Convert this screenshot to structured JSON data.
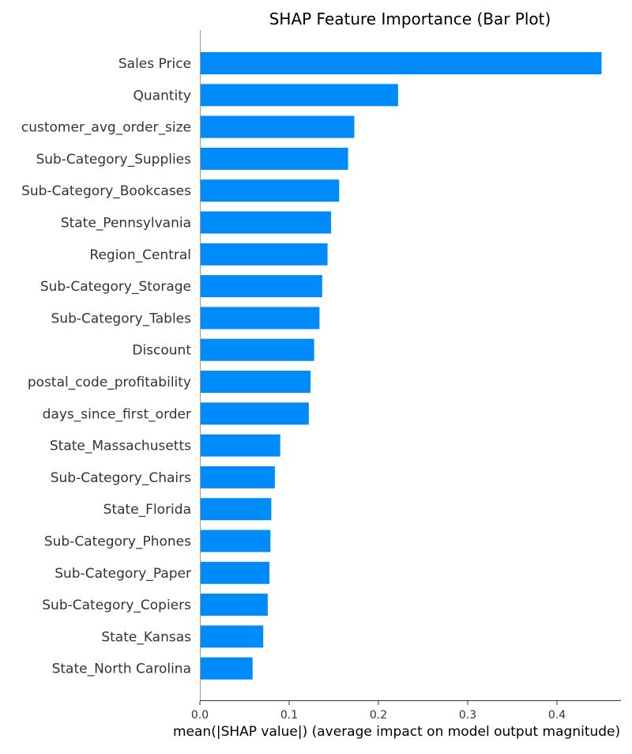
{
  "chart_data": {
    "type": "bar",
    "orientation": "horizontal",
    "title": "SHAP Feature Importance (Bar Plot)",
    "xlabel": "mean(|SHAP value|) (average impact on model output magnitude)",
    "ylabel": "",
    "xlim": [
      0,
      0.47
    ],
    "xticks": [
      0.0,
      0.1,
      0.2,
      0.3,
      0.4
    ],
    "xtick_labels": [
      "0.0",
      "0.1",
      "0.2",
      "0.3",
      "0.4"
    ],
    "grid": false,
    "bar_color": "#008bfb",
    "categories": [
      "Sales Price",
      "Quantity",
      "customer_avg_order_size",
      "Sub-Category_Supplies",
      "Sub-Category_Bookcases",
      "State_Pennsylvania",
      "Region_Central",
      "Sub-Category_Storage",
      "Sub-Category_Tables",
      "Discount",
      "postal_code_profitability",
      "days_since_first_order",
      "State_Massachusetts",
      "Sub-Category_Chairs",
      "State_Florida",
      "Sub-Category_Phones",
      "Sub-Category_Paper",
      "Sub-Category_Copiers",
      "State_Kansas",
      "State_North Carolina"
    ],
    "values": [
      0.45,
      0.222,
      0.173,
      0.166,
      0.156,
      0.147,
      0.143,
      0.137,
      0.134,
      0.128,
      0.124,
      0.122,
      0.09,
      0.084,
      0.08,
      0.079,
      0.078,
      0.076,
      0.071,
      0.059
    ]
  }
}
